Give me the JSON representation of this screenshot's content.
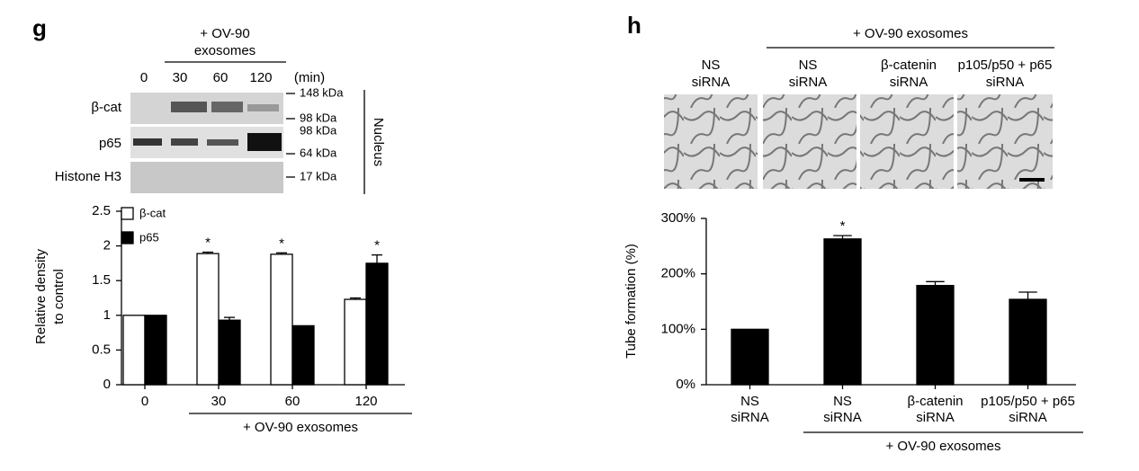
{
  "panel_labels": [
    "g",
    "h"
  ],
  "blot": {
    "header": [
      "+ OV-90",
      "exosomes"
    ],
    "lanes": [
      "0",
      "30",
      "60",
      "120"
    ],
    "unit": "(min)",
    "rows": [
      "β-cat",
      "p65",
      "Histone H3"
    ],
    "markers": [
      "148 kDa",
      "98 kDa",
      "98 kDa",
      "64 kDa",
      "17 kDa"
    ],
    "fraction": "Nucleus"
  },
  "images": {
    "header": "+ OV-90 exosomes",
    "columns": [
      [
        "NS",
        "siRNA"
      ],
      [
        "NS",
        "siRNA"
      ],
      [
        "β-catenin",
        "siRNA"
      ],
      [
        "p105/p50 + p65",
        "siRNA"
      ]
    ]
  },
  "chart_data": [
    {
      "type": "bar",
      "ylabel": [
        "Relative density",
        "to control"
      ],
      "categories": [
        "0",
        "30",
        "60",
        "120"
      ],
      "series": [
        {
          "name": "β-cat",
          "color": "#ffffff",
          "values": [
            1,
            1.89,
            1.88,
            1.23
          ],
          "errors": [
            0,
            0.02,
            0.02,
            0.02
          ]
        },
        {
          "name": "p65",
          "color": "#000000",
          "values": [
            1,
            0.93,
            0.85,
            1.75
          ],
          "errors": [
            0,
            0.04,
            0,
            0.12
          ]
        }
      ],
      "significance_labels": [
        null,
        "*",
        "*",
        "*"
      ],
      "group_label": "+ OV-90 exosomes",
      "ylim": [
        0,
        2.5
      ],
      "yticks": [
        0,
        0.5,
        1,
        1.5,
        2,
        2.5
      ],
      "legend": "top-left"
    },
    {
      "type": "bar",
      "ylabel": "Tube formation (%)",
      "categories": [
        [
          "NS",
          "siRNA"
        ],
        [
          "NS",
          "siRNA"
        ],
        [
          "β-catenin",
          "siRNA"
        ],
        [
          "p105/p50 + p65",
          "siRNA"
        ]
      ],
      "series": [
        {
          "color": "#000000",
          "values": [
            100,
            263,
            179,
            154
          ],
          "errors": [
            0,
            6,
            7,
            13
          ]
        }
      ],
      "significance_labels": [
        null,
        "*",
        null,
        null
      ],
      "group_label": "+ OV-90 exosomes",
      "ylim": [
        0,
        300
      ],
      "yticks": [
        {
          "value": 0,
          "label": "0%"
        },
        {
          "value": 100,
          "label": "100%"
        },
        {
          "value": 200,
          "label": "200%"
        },
        {
          "value": 300,
          "label": "300%"
        }
      ]
    }
  ]
}
